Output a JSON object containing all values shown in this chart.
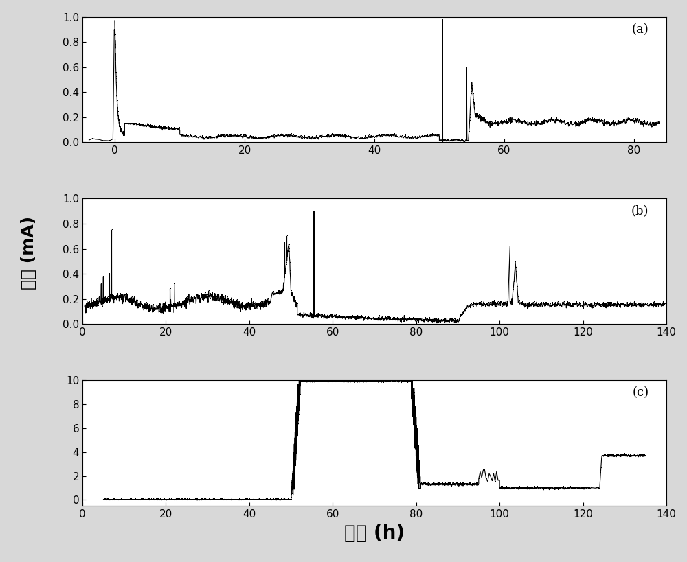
{
  "fig_width": 10.0,
  "fig_height": 8.19,
  "dpi": 100,
  "background_color": "#d8d8d8",
  "panel_bg": "#ffffff",
  "line_color": "#000000",
  "marker": ",",
  "markersize": 2,
  "linewidth": 0.8,
  "xlabel": "时间 (h)",
  "ylabel": "电流 (mA)",
  "xlabel_fontsize": 20,
  "ylabel_fontsize": 18,
  "tick_fontsize": 11,
  "label_a": "(a)",
  "label_b": "(b)",
  "label_c": "(c)",
  "panel_label_fontsize": 13,
  "panel_a": {
    "xlim": [
      -5,
      85
    ],
    "ylim": [
      0.0,
      1.0
    ],
    "xticks": [
      0,
      20,
      40,
      60,
      80
    ],
    "yticks": [
      0.0,
      0.2,
      0.4,
      0.6,
      0.8,
      1.0
    ]
  },
  "panel_b": {
    "xlim": [
      0,
      140
    ],
    "ylim": [
      0.0,
      1.0
    ],
    "xticks": [
      0,
      20,
      40,
      60,
      80,
      100,
      120,
      140
    ],
    "yticks": [
      0.0,
      0.2,
      0.4,
      0.6,
      0.8,
      1.0
    ]
  },
  "panel_c": {
    "xlim": [
      0,
      140
    ],
    "ylim": [
      -0.5,
      10
    ],
    "xticks": [
      0,
      20,
      40,
      60,
      80,
      100,
      120,
      140
    ],
    "yticks": [
      0,
      2,
      4,
      6,
      8,
      10
    ]
  }
}
